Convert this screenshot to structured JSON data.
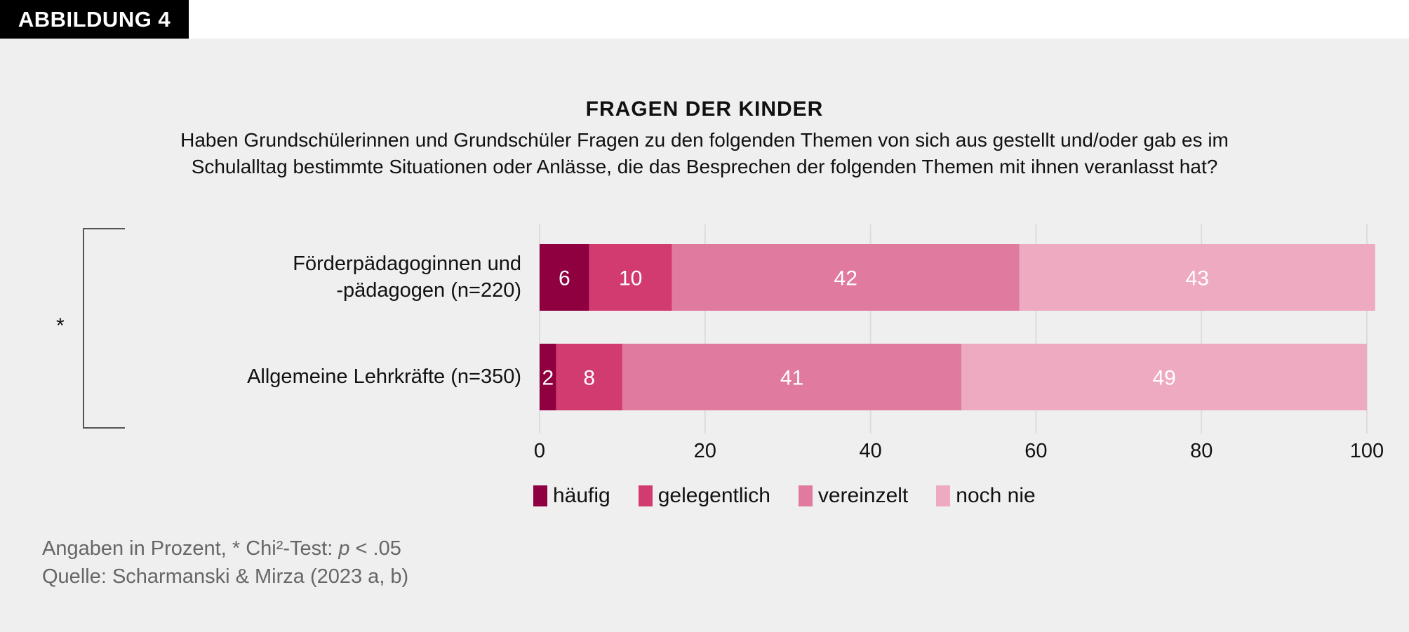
{
  "badge": "ABBILDUNG 4",
  "title": "FRAGEN DER KINDER",
  "subtitle_lines": [
    "Haben Grundschülerinnen und Grundschüler Fragen zu den folgenden Themen von sich aus gestellt und/oder gab es im",
    "Schulalltag bestimmte Situationen oder Anlässe, die das Besprechen der folgenden Themen mit ihnen veranlasst hat?"
  ],
  "significance_marker": "*",
  "footnotes": {
    "line1_prefix": "Angaben in Prozent, * Chi²-Test: ",
    "line1_p": "p",
    "line1_suffix": " < .05",
    "line2": "Quelle: Scharmanski & Mirza (2023 a, b)"
  },
  "chart_data": {
    "type": "bar",
    "orientation": "horizontal",
    "stacked": true,
    "categories": [
      {
        "line1": "Förderpädagoginnen und",
        "line2": "-pädagogen (n=220)"
      },
      {
        "line1": "Allgemeine Lehrkräfte (n=350)",
        "line2": ""
      }
    ],
    "series": [
      {
        "name": "häufig",
        "color": "#8e0040",
        "values": [
          6,
          2
        ]
      },
      {
        "name": "gelegentlich",
        "color": "#d23b70",
        "values": [
          10,
          8
        ]
      },
      {
        "name": "vereinzelt",
        "color": "#e07a9e",
        "values": [
          42,
          41
        ]
      },
      {
        "name": "noch nie",
        "color": "#eeaac0",
        "values": [
          43,
          49
        ]
      }
    ],
    "xlim": [
      0,
      100
    ],
    "xticks": [
      "0",
      "20",
      "40",
      "60",
      "80",
      "100"
    ],
    "grid": true,
    "legend_position": "bottom"
  }
}
